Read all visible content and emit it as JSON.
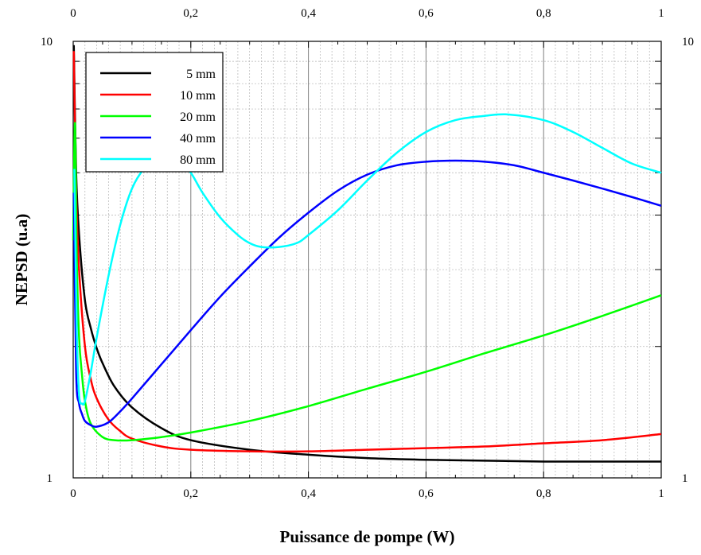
{
  "chart_data": {
    "type": "line",
    "xlabel": "Puissance de pompe (W)",
    "ylabel": "NEPSD (u.a)",
    "xlim": [
      0,
      1
    ],
    "ylim": [
      1,
      10
    ],
    "y_scale": "log",
    "grid": true,
    "legend_position": "top-left",
    "x_ticks": [
      {
        "value": 0,
        "label": "0"
      },
      {
        "value": 0.2,
        "label": "0,2"
      },
      {
        "value": 0.4,
        "label": "0,4"
      },
      {
        "value": 0.6,
        "label": "0,6"
      },
      {
        "value": 0.8,
        "label": "0,8"
      },
      {
        "value": 1,
        "label": "1"
      }
    ],
    "y_ticks": [
      {
        "value": 1,
        "label": "1"
      },
      {
        "value": 10,
        "label": "10"
      }
    ],
    "series": [
      {
        "name": "5 mm",
        "color": "#000000",
        "x": [
          0.001,
          0.005,
          0.01,
          0.02,
          0.03,
          0.04,
          0.05,
          0.07,
          0.1,
          0.15,
          0.2,
          0.3,
          0.4,
          0.5,
          0.6,
          0.7,
          0.8,
          0.9,
          1.0
        ],
        "y": [
          9.8,
          5.0,
          3.6,
          2.55,
          2.2,
          1.98,
          1.83,
          1.62,
          1.45,
          1.3,
          1.22,
          1.16,
          1.13,
          1.11,
          1.1,
          1.095,
          1.09,
          1.09,
          1.09
        ]
      },
      {
        "name": "10 mm",
        "color": "#ff0000",
        "x": [
          0.001,
          0.005,
          0.01,
          0.02,
          0.03,
          0.04,
          0.06,
          0.08,
          0.1,
          0.15,
          0.2,
          0.3,
          0.4,
          0.5,
          0.6,
          0.7,
          0.8,
          0.9,
          1.0
        ],
        "y": [
          9.5,
          4.5,
          3.0,
          2.0,
          1.68,
          1.52,
          1.36,
          1.28,
          1.23,
          1.18,
          1.16,
          1.15,
          1.15,
          1.16,
          1.17,
          1.18,
          1.2,
          1.22,
          1.26
        ]
      },
      {
        "name": "20 mm",
        "color": "#00ff00",
        "x": [
          0.0,
          0.003,
          0.006,
          0.01,
          0.015,
          0.02,
          0.03,
          0.05,
          0.07,
          0.1,
          0.15,
          0.2,
          0.3,
          0.4,
          0.5,
          0.6,
          0.7,
          0.8,
          0.9,
          1.0
        ],
        "y": [
          3.5,
          6.5,
          3.2,
          2.1,
          1.72,
          1.5,
          1.33,
          1.24,
          1.22,
          1.22,
          1.24,
          1.27,
          1.35,
          1.46,
          1.6,
          1.75,
          1.93,
          2.12,
          2.35,
          2.62
        ]
      },
      {
        "name": "40 mm",
        "color": "#0000ff",
        "x": [
          0.001,
          0.005,
          0.01,
          0.015,
          0.02,
          0.03,
          0.04,
          0.06,
          0.08,
          0.1,
          0.15,
          0.2,
          0.25,
          0.3,
          0.35,
          0.4,
          0.45,
          0.5,
          0.55,
          0.6,
          0.65,
          0.7,
          0.75,
          0.8,
          0.85,
          0.9,
          0.95,
          1.0
        ],
        "y": [
          4.5,
          1.75,
          1.48,
          1.4,
          1.35,
          1.32,
          1.31,
          1.34,
          1.42,
          1.52,
          1.82,
          2.18,
          2.6,
          3.05,
          3.55,
          4.05,
          4.55,
          4.95,
          5.2,
          5.3,
          5.33,
          5.3,
          5.2,
          5.0,
          4.8,
          4.6,
          4.4,
          4.2
        ]
      },
      {
        "name": "80 mm",
        "color": "#00ffff",
        "x": [
          0.002,
          0.006,
          0.01,
          0.015,
          0.02,
          0.03,
          0.04,
          0.06,
          0.08,
          0.1,
          0.12,
          0.14,
          0.16,
          0.18,
          0.2,
          0.22,
          0.25,
          0.28,
          0.3,
          0.32,
          0.35,
          0.38,
          0.4,
          0.45,
          0.5,
          0.55,
          0.6,
          0.65,
          0.7,
          0.74,
          0.8,
          0.85,
          0.9,
          0.95,
          1.0
        ],
        "y": [
          5.1,
          2.2,
          1.55,
          1.48,
          1.5,
          1.75,
          2.1,
          2.9,
          3.8,
          4.6,
          5.1,
          5.35,
          5.45,
          5.35,
          5.0,
          4.5,
          3.95,
          3.6,
          3.45,
          3.38,
          3.38,
          3.45,
          3.6,
          4.1,
          4.8,
          5.55,
          6.2,
          6.6,
          6.75,
          6.8,
          6.6,
          6.2,
          5.7,
          5.25,
          5.0
        ]
      }
    ]
  }
}
